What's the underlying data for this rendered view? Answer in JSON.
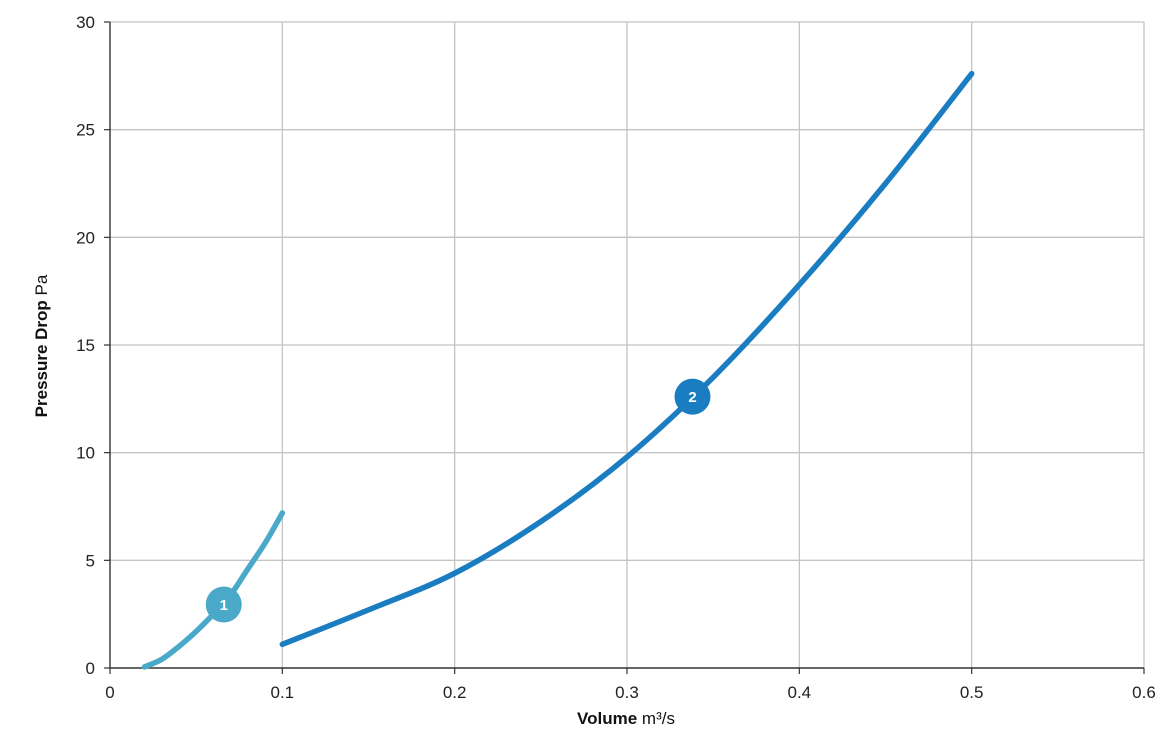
{
  "chart_data": {
    "type": "line",
    "title": "",
    "xlabel_bold": "Volume",
    "xlabel_unit": "m³/s",
    "ylabel_bold": "Pressure Drop",
    "ylabel_unit": "Pa",
    "xlim": [
      0,
      0.6
    ],
    "ylim": [
      0,
      30
    ],
    "grid": true,
    "x_ticks": [
      "0",
      "0.1",
      "0.2",
      "0.3",
      "0.4",
      "0.5",
      "0.6"
    ],
    "y_ticks": [
      "0",
      "5",
      "10",
      "15",
      "20",
      "25",
      "30"
    ],
    "series": [
      {
        "marker_label": "1",
        "color": "#4aa8c8",
        "x": [
          0.02,
          0.03,
          0.04,
          0.05,
          0.06,
          0.07,
          0.08,
          0.09,
          0.1
        ],
        "y": [
          0.05,
          0.4,
          1.0,
          1.7,
          2.5,
          3.4,
          4.6,
          5.8,
          7.2
        ],
        "marker_at": [
          0.066,
          2.95
        ]
      },
      {
        "marker_label": "2",
        "color": "#1a7cc1",
        "x": [
          0.1,
          0.15,
          0.2,
          0.25,
          0.3,
          0.35,
          0.4,
          0.45,
          0.5
        ],
        "y": [
          1.1,
          2.7,
          4.4,
          6.8,
          9.8,
          13.5,
          17.8,
          22.5,
          27.6
        ],
        "marker_at": [
          0.338,
          12.6
        ]
      }
    ]
  }
}
